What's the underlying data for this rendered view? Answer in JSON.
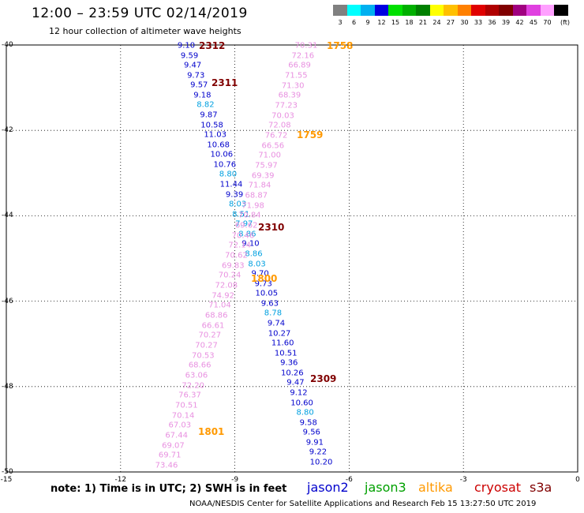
{
  "title": "12:00 – 23:59 UTC 02/14/2019",
  "subtitle": "12 hour collection of altimeter wave heights",
  "legend": {
    "unit": "(ft)",
    "bins": [
      {
        "label": "3",
        "color": "#808080"
      },
      {
        "label": "6",
        "color": "#00ffff"
      },
      {
        "label": "9",
        "color": "#00b0f0"
      },
      {
        "label": "12",
        "color": "#0000e0"
      },
      {
        "label": "15",
        "color": "#00e000"
      },
      {
        "label": "18",
        "color": "#00b000"
      },
      {
        "label": "21",
        "color": "#008000"
      },
      {
        "label": "24",
        "color": "#ffff00"
      },
      {
        "label": "27",
        "color": "#ffc000"
      },
      {
        "label": "30",
        "color": "#ff8000"
      },
      {
        "label": "33",
        "color": "#e00000"
      },
      {
        "label": "36",
        "color": "#b00000"
      },
      {
        "label": "39",
        "color": "#800000"
      },
      {
        "label": "42",
        "color": "#a00080"
      },
      {
        "label": "45",
        "color": "#e040e0"
      },
      {
        "label": "70",
        "color": "#ffa0ff"
      },
      {
        "label": "",
        "color": "#000000"
      }
    ]
  },
  "axes": {
    "x_ticks": [
      {
        "label": "-15",
        "value": -15
      },
      {
        "label": "-12",
        "value": -12
      },
      {
        "label": "-9",
        "value": -9
      },
      {
        "label": "-6",
        "value": -6
      },
      {
        "label": "-3",
        "value": -3
      },
      {
        "label": "0",
        "value": 0
      }
    ],
    "y_ticks": [
      {
        "label": "-40",
        "value": -40
      },
      {
        "label": "-42",
        "value": -42
      },
      {
        "label": "-44",
        "value": -44
      },
      {
        "label": "-46",
        "value": -46
      },
      {
        "label": "-48",
        "value": -48
      },
      {
        "label": "-50",
        "value": -50
      }
    ]
  },
  "track_west": {
    "color_hex": "#0000cc",
    "readings": [
      [
        "9.10",
        "#0000cc"
      ],
      [
        "9.59",
        "#0000cc"
      ],
      [
        "9.47",
        "#0000cc"
      ],
      [
        "9.73",
        "#0000cc"
      ],
      [
        "9.57",
        "#0000cc"
      ],
      [
        "9.18",
        "#0000cc"
      ],
      [
        "8.82",
        "#00a0e0"
      ],
      [
        "9.87",
        "#0000cc"
      ],
      [
        "10.58",
        "#0000cc"
      ],
      [
        "11.03",
        "#0000cc"
      ],
      [
        "10.68",
        "#0000cc"
      ],
      [
        "10.06",
        "#0000cc"
      ],
      [
        "10.76",
        "#0000cc"
      ],
      [
        "8.80",
        "#00a0e0"
      ],
      [
        "11.44",
        "#0000cc"
      ],
      [
        "9.39",
        "#0000cc"
      ],
      [
        "8.03",
        "#00a0e0"
      ],
      [
        "8.51",
        "#00a0e0"
      ],
      [
        "7.97",
        "#00a0e0"
      ],
      [
        "8.86",
        "#00a0e0"
      ],
      [
        "9.10",
        "#0000cc"
      ],
      [
        "8.86",
        "#00a0e0"
      ],
      [
        "8.03",
        "#00a0e0"
      ],
      [
        "9.70",
        "#0000cc"
      ],
      [
        "9.73",
        "#0000cc"
      ],
      [
        "10.05",
        "#0000cc"
      ],
      [
        "9.63",
        "#0000cc"
      ],
      [
        "8.78",
        "#00a0e0"
      ],
      [
        "9.74",
        "#0000cc"
      ],
      [
        "10.27",
        "#0000cc"
      ],
      [
        "11.60",
        "#0000cc"
      ],
      [
        "10.51",
        "#0000cc"
      ],
      [
        "9.36",
        "#0000cc"
      ],
      [
        "10.26",
        "#0000cc"
      ],
      [
        "9.47",
        "#0000cc"
      ],
      [
        "9.12",
        "#0000cc"
      ],
      [
        "10.60",
        "#0000cc"
      ],
      [
        "8.80",
        "#00a0e0"
      ],
      [
        "9.58",
        "#0000cc"
      ],
      [
        "9.56",
        "#0000cc"
      ],
      [
        "9.91",
        "#0000cc"
      ],
      [
        "9.22",
        "#0000cc"
      ],
      [
        "10.20",
        "#0000cc"
      ]
    ]
  },
  "track_east": {
    "color_hex": "#e890e0",
    "readings": [
      "70.31",
      "72.16",
      "66.89",
      "71.55",
      "71.30",
      "68.39",
      "77.23",
      "70.03",
      "72.08",
      "76.72",
      "66.56",
      "71.00",
      "75.97",
      "69.39",
      "71.84",
      "68.87",
      "71.98",
      "70.84",
      "69.62",
      "70.46",
      "72.14",
      "70.62",
      "69.83",
      "70.24",
      "72.08",
      "74.92",
      "71.04",
      "68.86",
      "66.61",
      "70.27",
      "70.27",
      "70.53",
      "68.66",
      "63.06",
      "72.20",
      "76.37",
      "70.51",
      "70.14",
      "67.03",
      "67.44",
      "69.07",
      "69.71",
      "73.46"
    ]
  },
  "time_labels": [
    {
      "text": "2312",
      "color": "#800000"
    },
    {
      "text": "2311",
      "color": "#800000"
    },
    {
      "text": "2310",
      "color": "#800000"
    },
    {
      "text": "2309",
      "color": "#800000"
    },
    {
      "text": "1758",
      "color": "#ff9900"
    },
    {
      "text": "1759",
      "color": "#ff9900"
    },
    {
      "text": "1800",
      "color": "#ff9900"
    },
    {
      "text": "1801",
      "color": "#ff9900"
    }
  ],
  "note": "note: 1) Time is in UTC; 2) SWH is in feet",
  "satellites": [
    {
      "name": "jason2",
      "color": "#0000cc"
    },
    {
      "name": "jason3",
      "color": "#00a000"
    },
    {
      "name": "altika",
      "color": "#ff9900"
    },
    {
      "name": "cryosat",
      "color": "#cc0000"
    },
    {
      "name": "s3a",
      "color": "#800000"
    }
  ],
  "footer": "NOAA/NESDIS Center for Satellite Applications and Research    Feb 15 13:27:50 UTC 2019"
}
